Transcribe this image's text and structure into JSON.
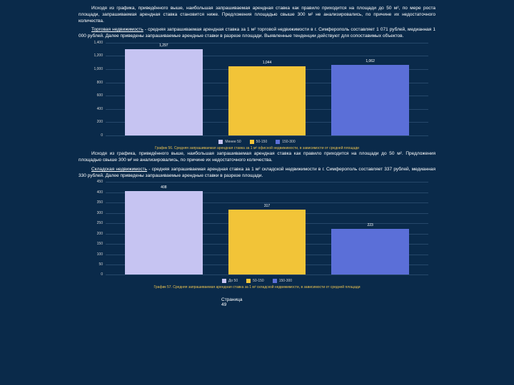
{
  "paragraphs": {
    "p1": "Исходя из графика, приведённого выше, наибольшая запрашиваемая арендная ставка как правило приходится на площади до 50 м², по мере роста площади, запрашиваемая арендная ставка становится ниже. Предложения площадью свыше 300 м² не анализировались, по причине их недостаточного количества.",
    "p2_lead": "Торговая недвижимость",
    "p2_rest": " - средняя запрашиваемая арендная ставка за 1 м² торговой недвижимости в г. Симферополь составляет 1 071 рублей, медианная 1 000 рублей. Далее приведены запрашиваемые арендные ставки в разрезе площади. Выявленные тенденции действуют для сопоставимых объектов.",
    "p3": "Исходя из графика, приведённого выше, наибольшая запрашиваемая арендная ставка как правило приходится на площади до 50 м². Предложения площадью свыше 300 м² не анализировались, по причине их недостаточного количества.",
    "p4_lead": "Складская недвижимость",
    "p4_rest": " - средняя запрашиваемая арендная ставка за 1 м² складской недвижимости в г. Симферополь составляет 337 рублей, медианная 330 рублей. Далее приведены запрашиваемые арендные ставки в разрезе площади."
  },
  "chart1": {
    "type": "bar",
    "ylim": [
      0,
      1400
    ],
    "ytick_step": 200,
    "categories": [
      "Менее 50",
      "50-150",
      "150-300"
    ],
    "values": [
      1297,
      1044,
      1062
    ],
    "bar_colors": [
      "#c6c4f2",
      "#f2c438",
      "#5b6fd8"
    ],
    "bar_width_pct": 24,
    "bar_gap_pct": 8,
    "bg": "#0a2a4a",
    "grid_color": "#26486a",
    "label_color": "#ffffff",
    "tick_fontsize": 5,
    "caption": "График 56. Средняя запрашиваемая арендная ставка за 1 м² офисной недвижимости, в зависимости от средней площади"
  },
  "chart2": {
    "type": "bar",
    "ylim": [
      0,
      450
    ],
    "ytick_step": 50,
    "categories": [
      "До 50",
      "50-150",
      "150-300"
    ],
    "values": [
      408,
      317,
      223
    ],
    "bar_colors": [
      "#c6c4f2",
      "#f2c438",
      "#5b6fd8"
    ],
    "bar_width_pct": 24,
    "bar_gap_pct": 8,
    "bg": "#0a2a4a",
    "grid_color": "#26486a",
    "label_color": "#ffffff",
    "tick_fontsize": 5,
    "caption": "График 57. Средняя запрашиваемая арендная ставка за 1 м² складской недвижимости, в зависимости от средней площади"
  },
  "footer": {
    "label": "Страница",
    "num": "49"
  },
  "colors": {
    "text": "#ffffff",
    "caption": "#e8c050",
    "bg": "#0a2a4a"
  }
}
